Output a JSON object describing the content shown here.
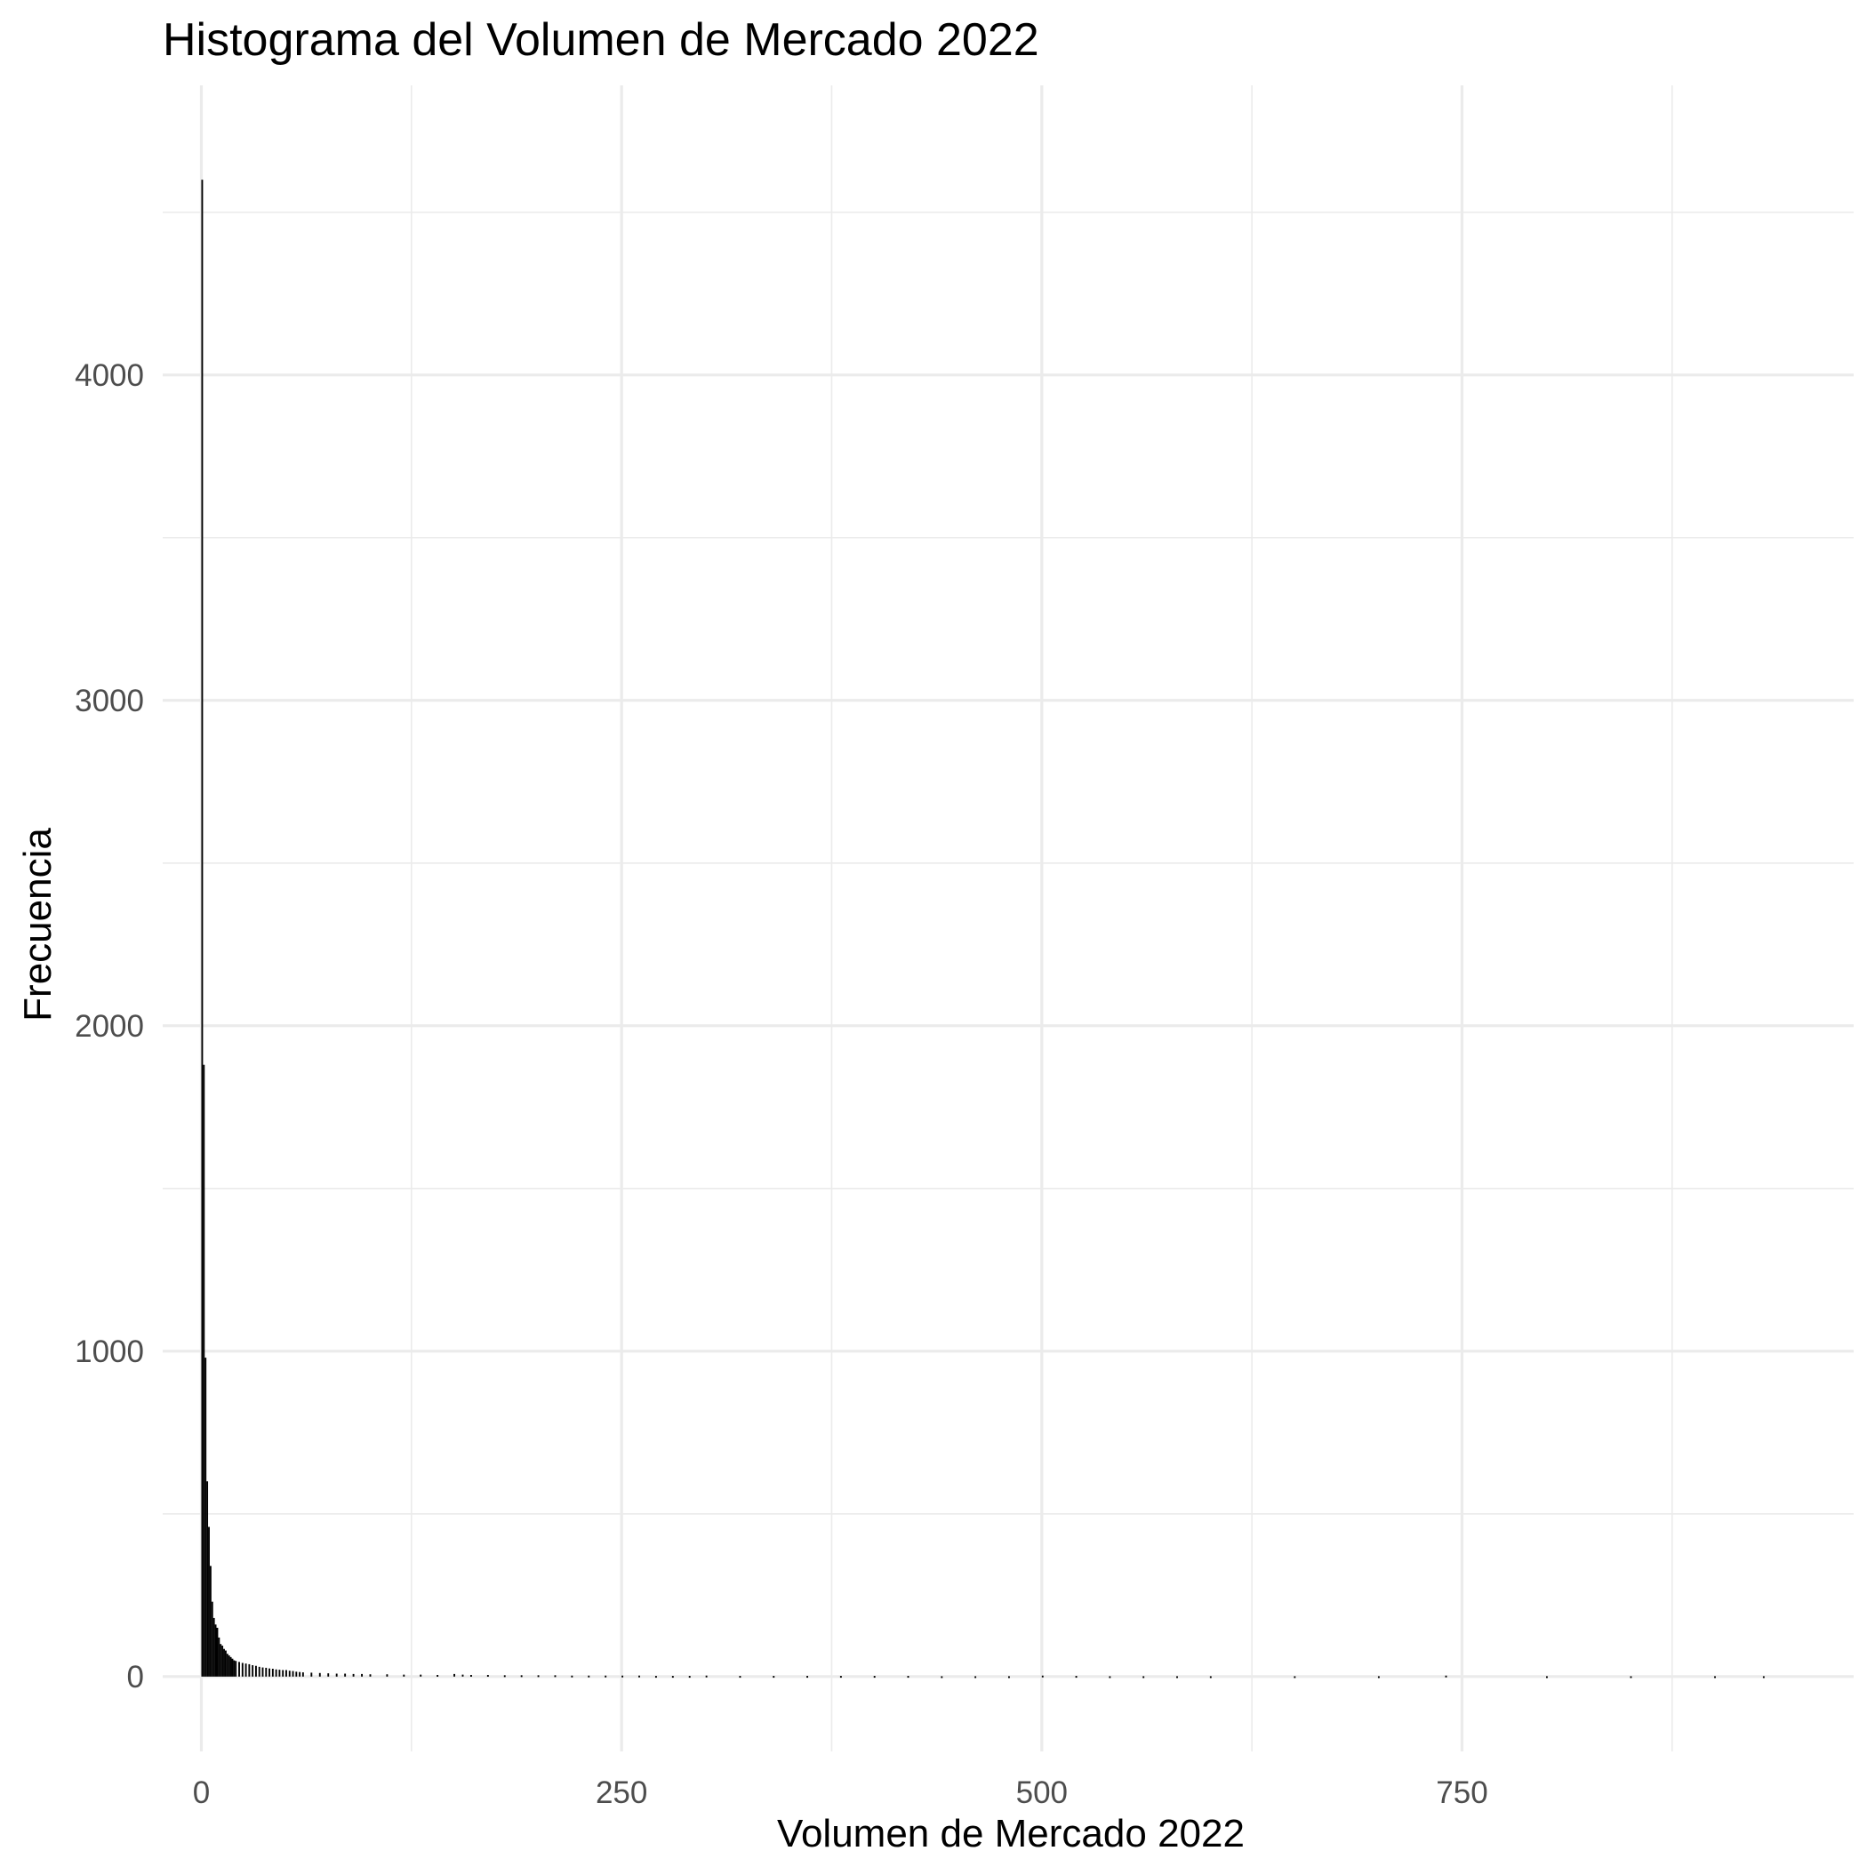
{
  "chart_data": {
    "type": "bar",
    "title": "Histograma del Volumen de Mercado 2022",
    "xlabel": "Volumen de Mercado 2022",
    "ylabel": "Frecuencia",
    "xlim": [
      -23,
      983
    ],
    "ylim": [
      -230,
      4890
    ],
    "x_ticks": [
      0,
      250,
      500,
      750
    ],
    "x_tick_labels": [
      "0",
      "250",
      "500",
      "750"
    ],
    "y_ticks": [
      0,
      1000,
      2000,
      3000,
      4000
    ],
    "y_tick_labels": [
      "0",
      "1000",
      "2000",
      "3000",
      "4000"
    ],
    "grid": true,
    "legend": "none",
    "bar_color": "#000000",
    "bin_width": 1,
    "bin_starts": [
      0,
      1,
      2,
      3,
      4,
      5,
      6,
      7,
      8,
      9,
      10,
      11,
      12,
      13,
      14,
      15,
      16,
      17,
      18,
      19,
      20,
      22,
      24,
      26,
      28,
      30,
      32,
      34,
      36,
      38,
      40,
      42,
      44,
      46,
      48,
      50,
      52,
      54,
      56,
      58,
      60,
      65,
      70,
      75,
      80,
      85,
      90,
      95,
      100,
      110,
      120,
      130,
      140,
      150,
      155,
      160,
      170,
      180,
      190,
      200,
      210,
      220,
      230,
      240,
      250,
      260,
      270,
      280,
      290,
      300,
      320,
      340,
      360,
      380,
      400,
      420,
      440,
      460,
      480,
      500,
      520,
      540,
      560,
      580,
      600,
      650,
      700,
      740,
      800,
      850,
      900,
      929
    ],
    "frequencies": [
      4600,
      1880,
      980,
      600,
      460,
      340,
      230,
      180,
      160,
      150,
      120,
      100,
      95,
      85,
      80,
      70,
      65,
      60,
      55,
      50,
      48,
      45,
      42,
      40,
      38,
      35,
      33,
      30,
      28,
      27,
      25,
      24,
      22,
      21,
      20,
      20,
      18,
      17,
      15,
      14,
      13,
      12,
      11,
      10,
      9,
      9,
      8,
      8,
      7,
      7,
      6,
      6,
      5,
      8,
      6,
      5,
      5,
      4,
      4,
      4,
      4,
      3,
      3,
      3,
      3,
      3,
      2,
      2,
      2,
      3,
      2,
      2,
      2,
      2,
      2,
      2,
      1,
      1,
      1,
      3,
      2,
      1,
      1,
      1,
      1,
      1,
      1,
      3,
      1,
      1,
      1,
      1
    ]
  }
}
